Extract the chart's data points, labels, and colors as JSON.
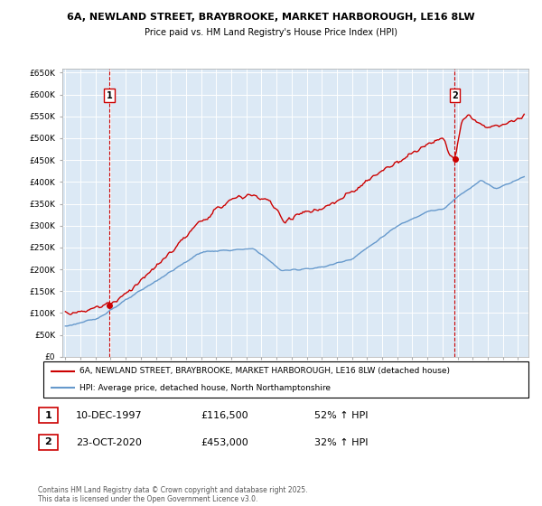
{
  "title_line1": "6A, NEWLAND STREET, BRAYBROOKE, MARKET HARBOROUGH, LE16 8LW",
  "title_line2": "Price paid vs. HM Land Registry's House Price Index (HPI)",
  "legend_line1": "6A, NEWLAND STREET, BRAYBROOKE, MARKET HARBOROUGH, LE16 8LW (detached house)",
  "legend_line2": "HPI: Average price, detached house, North Northamptonshire",
  "annotation1_label": "1",
  "annotation1_date": "10-DEC-1997",
  "annotation1_price": "£116,500",
  "annotation1_hpi": "52% ↑ HPI",
  "annotation2_label": "2",
  "annotation2_date": "23-OCT-2020",
  "annotation2_price": "£453,000",
  "annotation2_hpi": "32% ↑ HPI",
  "footer": "Contains HM Land Registry data © Crown copyright and database right 2025.\nThis data is licensed under the Open Government Licence v3.0.",
  "red_color": "#cc0000",
  "blue_color": "#6699cc",
  "background_color": "#ffffff",
  "chart_bg_color": "#dce9f5",
  "grid_color": "#ffffff",
  "ylim": [
    0,
    660000
  ],
  "yticks": [
    0,
    50000,
    100000,
    150000,
    200000,
    250000,
    300000,
    350000,
    400000,
    450000,
    500000,
    550000,
    600000,
    650000
  ],
  "x_start_year": 1995,
  "x_end_year": 2025,
  "purchase1_year": 1997.92,
  "purchase1_value": 116500,
  "purchase2_year": 2020.81,
  "purchase2_value": 453000
}
